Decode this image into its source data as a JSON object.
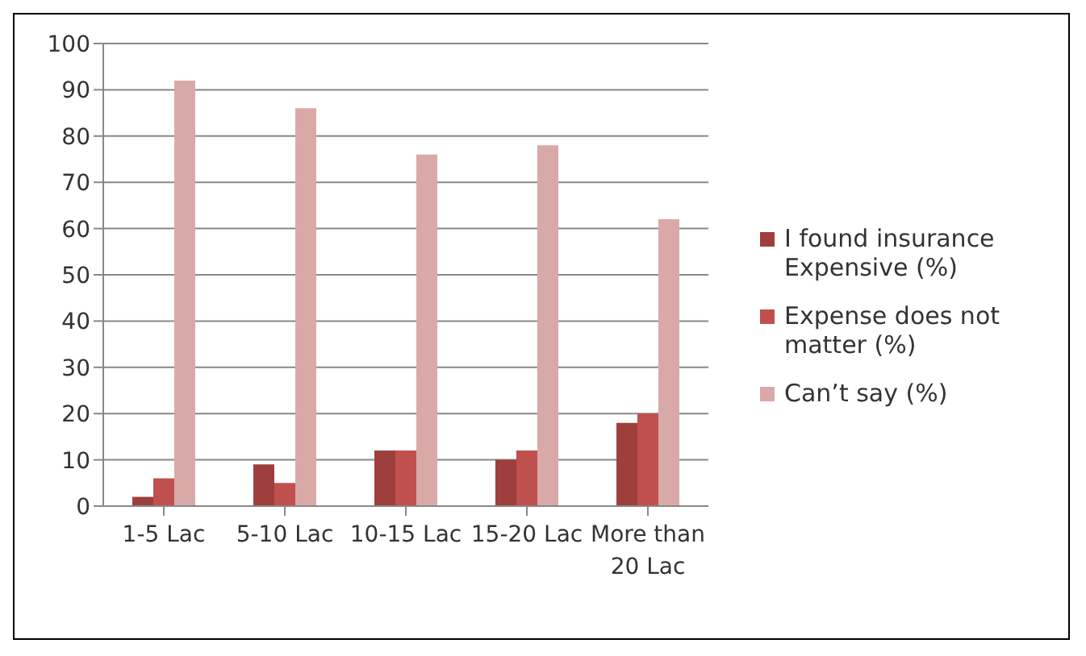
{
  "chart_data": {
    "type": "bar",
    "categories": [
      "1-5 Lac",
      "5-10 Lac",
      "10-15 Lac",
      "15-20 Lac",
      "More than 20 Lac"
    ],
    "series": [
      {
        "name": "I found insurance Expensive (%)",
        "color": "#9e3f3d",
        "values": [
          2,
          9,
          12,
          10,
          18
        ]
      },
      {
        "name": "Expense does not matter (%)",
        "color": "#c0504d",
        "values": [
          6,
          5,
          12,
          12,
          20
        ]
      },
      {
        "name": "Can’t say (%)",
        "color": "#d9a9a8",
        "values": [
          92,
          86,
          76,
          78,
          62
        ]
      }
    ],
    "ylim": [
      0,
      100
    ],
    "yticks": [
      0,
      10,
      20,
      30,
      40,
      50,
      60,
      70,
      80,
      90,
      100
    ],
    "grid": "y",
    "legend": "right"
  }
}
